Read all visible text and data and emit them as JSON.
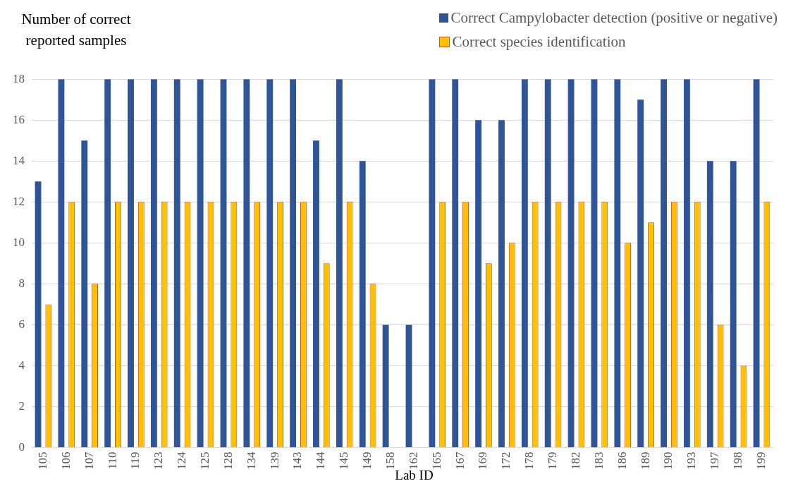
{
  "chart_data": {
    "type": "bar",
    "ylabel": "Number of correct reported samples",
    "xlabel": "Lab ID",
    "legend": "top right",
    "grid": "y",
    "ylim": [
      0,
      18
    ],
    "yticks": [
      0,
      2,
      4,
      6,
      8,
      10,
      12,
      14,
      16,
      18
    ],
    "categories": [
      "105",
      "106",
      "107",
      "110",
      "119",
      "123",
      "124",
      "125",
      "128",
      "134",
      "139",
      "143",
      "144",
      "145",
      "149",
      "158",
      "162",
      "165",
      "167",
      "169",
      "172",
      "178",
      "179",
      "182",
      "183",
      "186",
      "189",
      "190",
      "193",
      "197",
      "198",
      "199"
    ],
    "series": [
      {
        "name": "Correct Campylobacter detection (positive or negative)",
        "color": "#2f5597",
        "values": [
          13,
          18,
          15,
          18,
          18,
          18,
          18,
          18,
          18,
          18,
          18,
          18,
          15,
          18,
          14,
          6,
          6,
          18,
          18,
          16,
          16,
          18,
          18,
          18,
          18,
          18,
          17,
          18,
          18,
          14,
          14,
          18
        ]
      },
      {
        "name": "Correct species identification",
        "color": "#ffc000",
        "values": [
          7,
          12,
          8,
          12,
          12,
          12,
          12,
          12,
          12,
          12,
          12,
          12,
          9,
          12,
          8,
          0,
          0,
          12,
          12,
          9,
          10,
          12,
          12,
          12,
          12,
          10,
          11,
          12,
          12,
          6,
          4,
          12
        ]
      }
    ]
  }
}
